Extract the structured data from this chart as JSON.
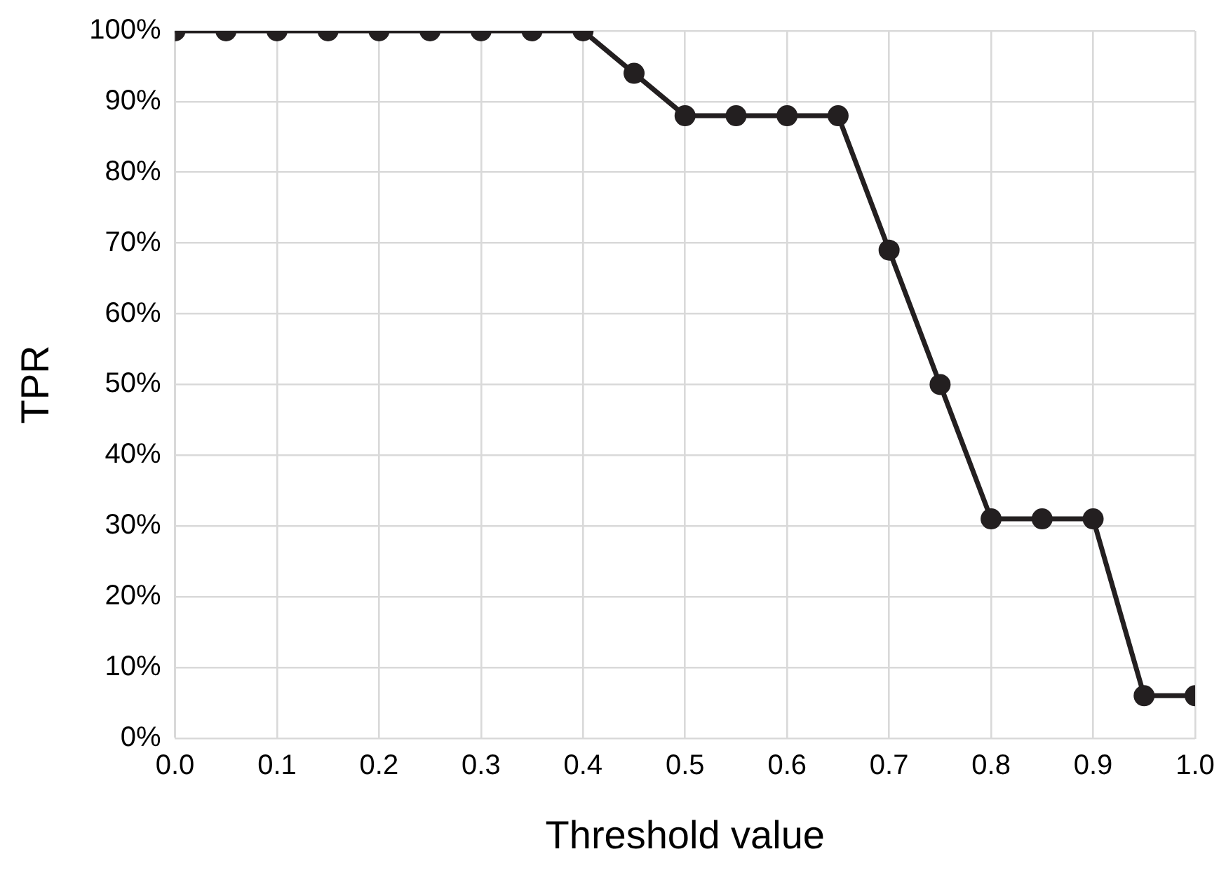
{
  "chart_data": {
    "type": "line",
    "xlabel": "Threshold value",
    "ylabel": "TPR",
    "x": [
      0,
      0.05,
      0.1,
      0.15,
      0.2,
      0.25,
      0.3,
      0.35,
      0.4,
      0.45,
      0.5,
      0.55,
      0.6,
      0.65,
      0.7,
      0.75,
      0.8,
      0.85,
      0.9,
      0.95,
      1.0
    ],
    "series": [
      {
        "color": "#231f20",
        "values": [
          100,
          100,
          100,
          100,
          100,
          100,
          100,
          100,
          100,
          94,
          88,
          88,
          88,
          88,
          69,
          50,
          31,
          31,
          31,
          6,
          6
        ]
      }
    ],
    "xlim": [
      0,
      1
    ],
    "xticks": [
      {
        "value": 0,
        "label": "0.0"
      },
      {
        "value": 0.1,
        "label": "0.1"
      },
      {
        "value": 0.2,
        "label": "0.2"
      },
      {
        "value": 0.3,
        "label": "0.3"
      },
      {
        "value": 0.4,
        "label": "0.4"
      },
      {
        "value": 0.5,
        "label": "0.5"
      },
      {
        "value": 0.6,
        "label": "0.6"
      },
      {
        "value": 0.7,
        "label": "0.7"
      },
      {
        "value": 0.8,
        "label": "0.8"
      },
      {
        "value": 0.9,
        "label": "0.9"
      },
      {
        "value": 1,
        "label": "1.0"
      }
    ],
    "ylim": [
      0,
      100
    ],
    "yticks": [
      {
        "value": 0,
        "label": "0%"
      },
      {
        "value": 10,
        "label": "10%"
      },
      {
        "value": 20,
        "label": "20%"
      },
      {
        "value": 30,
        "label": "30%"
      },
      {
        "value": 40,
        "label": "40%"
      },
      {
        "value": 50,
        "label": "50%"
      },
      {
        "value": 60,
        "label": "60%"
      },
      {
        "value": 70,
        "label": "70%"
      },
      {
        "value": 80,
        "label": "80%"
      },
      {
        "value": 90,
        "label": "90%"
      },
      {
        "value": 100,
        "label": "100%"
      }
    ],
    "grid": true,
    "legend": false,
    "marker": "circle",
    "line_style": "solid"
  }
}
